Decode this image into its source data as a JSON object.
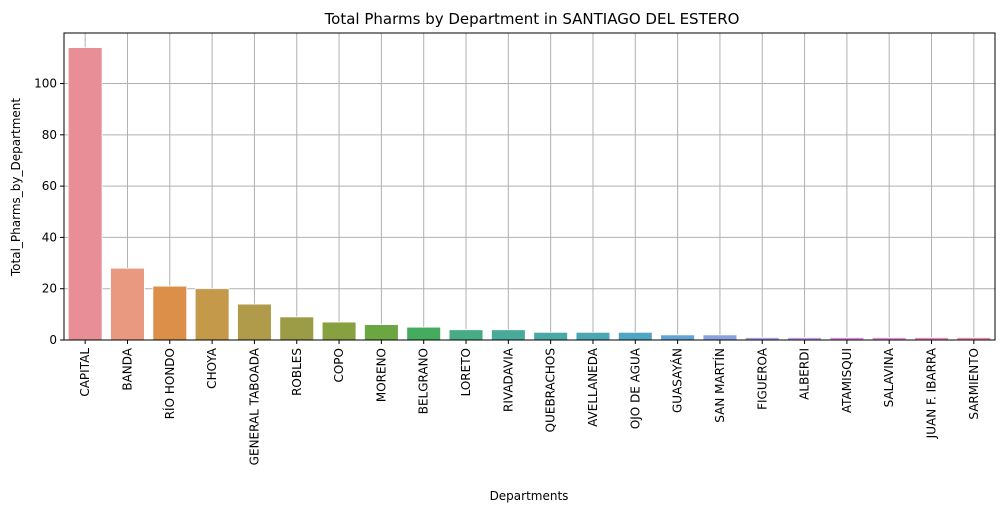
{
  "chart_data": {
    "type": "bar",
    "title": "Total Pharms by Department in SANTIAGO DEL ESTERO",
    "xlabel": "Departments",
    "ylabel": "Total_Pharms_by_Department",
    "ylim": [
      0,
      119.7
    ],
    "yticks": [
      0,
      20,
      40,
      60,
      80,
      100
    ],
    "grid": true,
    "categories": [
      "CAPITAL",
      "BANDA",
      "RÍO HONDO",
      "CHOYA",
      "GENERAL TABOADA",
      "ROBLES",
      "COPO",
      "MORENO",
      "BELGRANO",
      "LORETO",
      "RIVADAVIA",
      "QUEBRACHOS",
      "AVELLANEDA",
      "OJO DE AGUA",
      "GUASAYÁN",
      "SAN MARTÍN",
      "FIGUEROA",
      "ALBERDI",
      "ATAMISQUI",
      "SALAVINA",
      "JUAN F. IBARRA",
      "SARMIENTO"
    ],
    "values": [
      114,
      28,
      21,
      20,
      14,
      9,
      7,
      6,
      5,
      4,
      4,
      3,
      3,
      3,
      2,
      2,
      1,
      1,
      1,
      1,
      1,
      1
    ],
    "colors": [
      "#e88e97",
      "#e8997f",
      "#dc8f48",
      "#c4994a",
      "#b09b4a",
      "#9b9c45",
      "#87a140",
      "#6aa641",
      "#44ab5f",
      "#47ab86",
      "#49aa9a",
      "#4aa9a7",
      "#4ba8b3",
      "#4ea6c3",
      "#62a4d3",
      "#8aa3e0",
      "#a9a0e6",
      "#c39de6",
      "#d98fe0",
      "#e48ed3",
      "#e88dc3",
      "#e88fb0"
    ],
    "edge_color": "#ffffff",
    "grid_color": "#b0b0b0"
  }
}
